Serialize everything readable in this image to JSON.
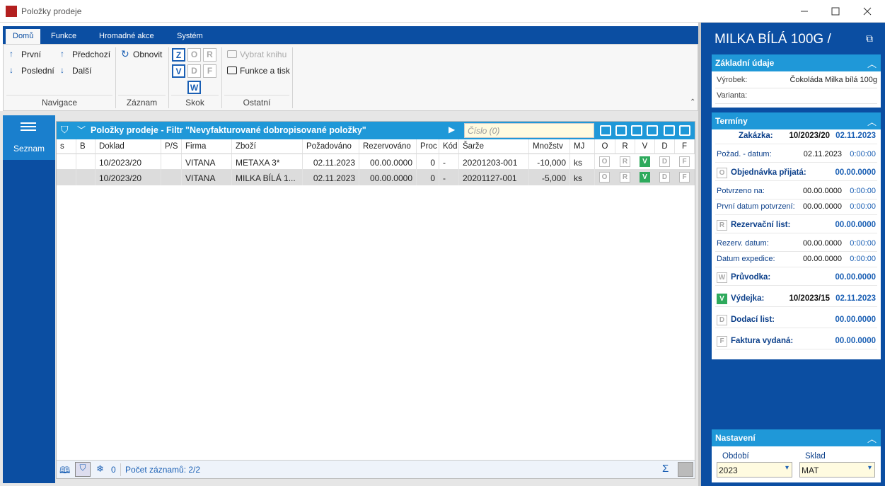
{
  "window": {
    "title": "Položky prodeje"
  },
  "ribbon": {
    "tabs": [
      "Domů",
      "Funkce",
      "Hromadné akce",
      "Systém"
    ],
    "groups": [
      {
        "label": "Navigace",
        "buttons": [
          "První",
          "Předchozí",
          "Poslední",
          "Další"
        ]
      },
      {
        "label": "Záznam",
        "buttons": [
          "Obnovit"
        ]
      },
      {
        "label": "Skok",
        "buttons": [
          "Z",
          "O",
          "R",
          "V",
          "D",
          "F",
          "W"
        ]
      },
      {
        "label": "Ostatní",
        "buttons": [
          "Vybrat knihu",
          "Funkce a tisk"
        ]
      }
    ]
  },
  "sidebar": {
    "items": [
      "Seznam"
    ]
  },
  "grid": {
    "title": "Položky prodeje - Filtr \"Nevyfakturované dobropisované položky\"",
    "search_placeholder": "Číslo (0)",
    "columns": [
      "s",
      "B",
      "Doklad",
      "P/S",
      "Firma",
      "Zboží",
      "Požadováno",
      "Rezervováno",
      "Proc",
      "Kód",
      "Šarže",
      "Množstv",
      "MJ",
      "O",
      "R",
      "V",
      "D",
      "F"
    ],
    "rows": [
      [
        null,
        null,
        "10/2023/20",
        null,
        "VITANA",
        "METAXA 3*",
        "02.11.2023",
        "00.00.0000",
        "0",
        "-",
        "20201203-001",
        "-10,000",
        "ks",
        "O",
        "R",
        "V",
        "D",
        "F"
      ],
      [
        null,
        null,
        "10/2023/20",
        null,
        "VITANA",
        "MILKA BÍLÁ 1...",
        "02.11.2023",
        "00.00.0000",
        "0",
        "-",
        "20201127-001",
        "-5,000",
        "ks",
        "O",
        "R",
        "V",
        "D",
        "F"
      ]
    ],
    "footer": {
      "filter_count": "0",
      "record_count": "Počet záznamů: 2/2"
    }
  },
  "detail": {
    "title": "MILKA BÍLÁ 100G /",
    "basic": {
      "title": "Základní údaje",
      "rows": [
        [
          "Výrobek:",
          "Čokoláda Milka bílá 100g"
        ],
        [
          "Varianta:",
          null
        ]
      ]
    },
    "terms": {
      "title": "Termíny",
      "items": [
        {
          "label": "Zakázka:",
          "value": "10/2023/20",
          "date": "02.11.2023"
        },
        {
          "label": "Požad. - datum:",
          "value": "02.11.2023",
          "time": "0:00:00"
        },
        {
          "badge": "O",
          "label": "Objednávka přijatá:",
          "value": "00.00.0000"
        },
        {
          "label": "Potvrzeno na:",
          "value": "00.00.0000",
          "time": "0:00:00"
        },
        {
          "label": "První datum potvrzení:",
          "value": "00.00.0000",
          "time": "0:00:00"
        },
        {
          "badge": "R",
          "label": "Rezervační list:",
          "value": "00.00.0000"
        },
        {
          "label": "Rezerv. datum:",
          "value": "00.00.0000",
          "time": "0:00:00"
        },
        {
          "label": "Datum expedice:",
          "value": "00.00.0000",
          "time": "0:00:00"
        },
        {
          "badge": "W",
          "label": "Průvodka:",
          "value": "00.00.0000"
        },
        {
          "badge": "V",
          "label": "Výdejka:",
          "value": "10/2023/15",
          "date": "02.11.2023"
        },
        {
          "badge": "D",
          "label": "Dodací list:",
          "value": "00.00.0000"
        },
        {
          "badge": "F",
          "label": "Faktura vydaná:",
          "value": "00.00.0000"
        }
      ]
    },
    "settings": {
      "title": "Nastavení",
      "fields": [
        {
          "label": "Období",
          "value": "2023"
        },
        {
          "label": "Sklad",
          "value": "MAT"
        }
      ]
    }
  }
}
